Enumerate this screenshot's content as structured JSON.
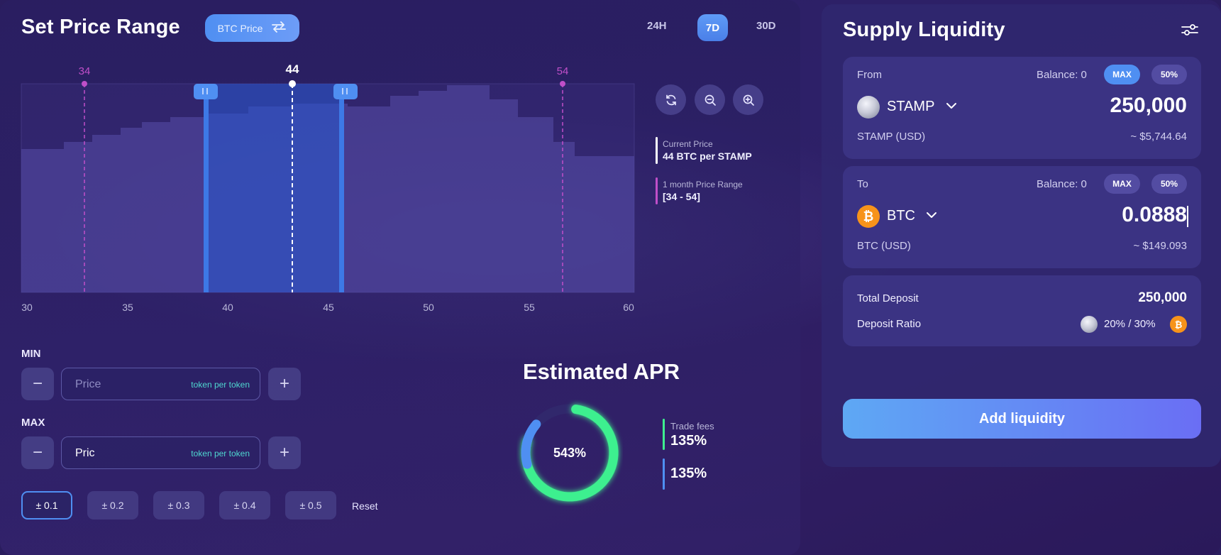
{
  "price_range": {
    "title": "Set Price Range",
    "toggle_label": "BTC Price",
    "timeframes": [
      "24H",
      "7D",
      "30D"
    ],
    "active_timeframe": "7D",
    "chart": {
      "markers": {
        "low": "34",
        "current": "44",
        "high": "54"
      },
      "x_ticks": [
        "30",
        "35",
        "40",
        "45",
        "50",
        "55",
        "60"
      ]
    },
    "legend": {
      "current_label": "Current Price",
      "current_value": "44 BTC per STAMP",
      "range_label": "1 month Price Range",
      "range_value": "[34 - 54]"
    },
    "min": {
      "label": "MIN",
      "placeholder": "Price",
      "value": "",
      "unit": "token per token"
    },
    "max": {
      "label": "MAX",
      "placeholder": "Price",
      "value": "Pric",
      "unit": "token per token"
    },
    "steps": [
      "± 0.1",
      "± 0.2",
      "± 0.3",
      "± 0.4",
      "± 0.5"
    ],
    "active_step": "± 0.1",
    "reset_label": "Reset"
  },
  "apr": {
    "title": "Estimated APR",
    "center_value": "543%",
    "trade_fees_label": "Trade fees",
    "trade_fees_value": "135%",
    "second_value": "135%",
    "colors": {
      "green": "#3ef08f",
      "blue": "#4f8ff2"
    }
  },
  "supply": {
    "title": "Supply Liquidity",
    "from": {
      "label": "From",
      "balance": "Balance: 0",
      "max_label": "MAX",
      "pct_label": "50%",
      "token": "STAMP",
      "amount": "250,000",
      "usd_label": "STAMP (USD)",
      "usd_value": "~ $5,744.64"
    },
    "to": {
      "label": "To",
      "balance": "Balance: 0",
      "max_label": "MAX",
      "pct_label": "50%",
      "token": "BTC",
      "amount": "0.0888",
      "usd_label": "BTC (USD)",
      "usd_value": "~ $149.093"
    },
    "summary": {
      "total_label": "Total Deposit",
      "total_value": "250,000",
      "ratio_label": "Deposit Ratio",
      "ratio_value": "20% / 30%"
    },
    "add_button": "Add liquidity"
  }
}
